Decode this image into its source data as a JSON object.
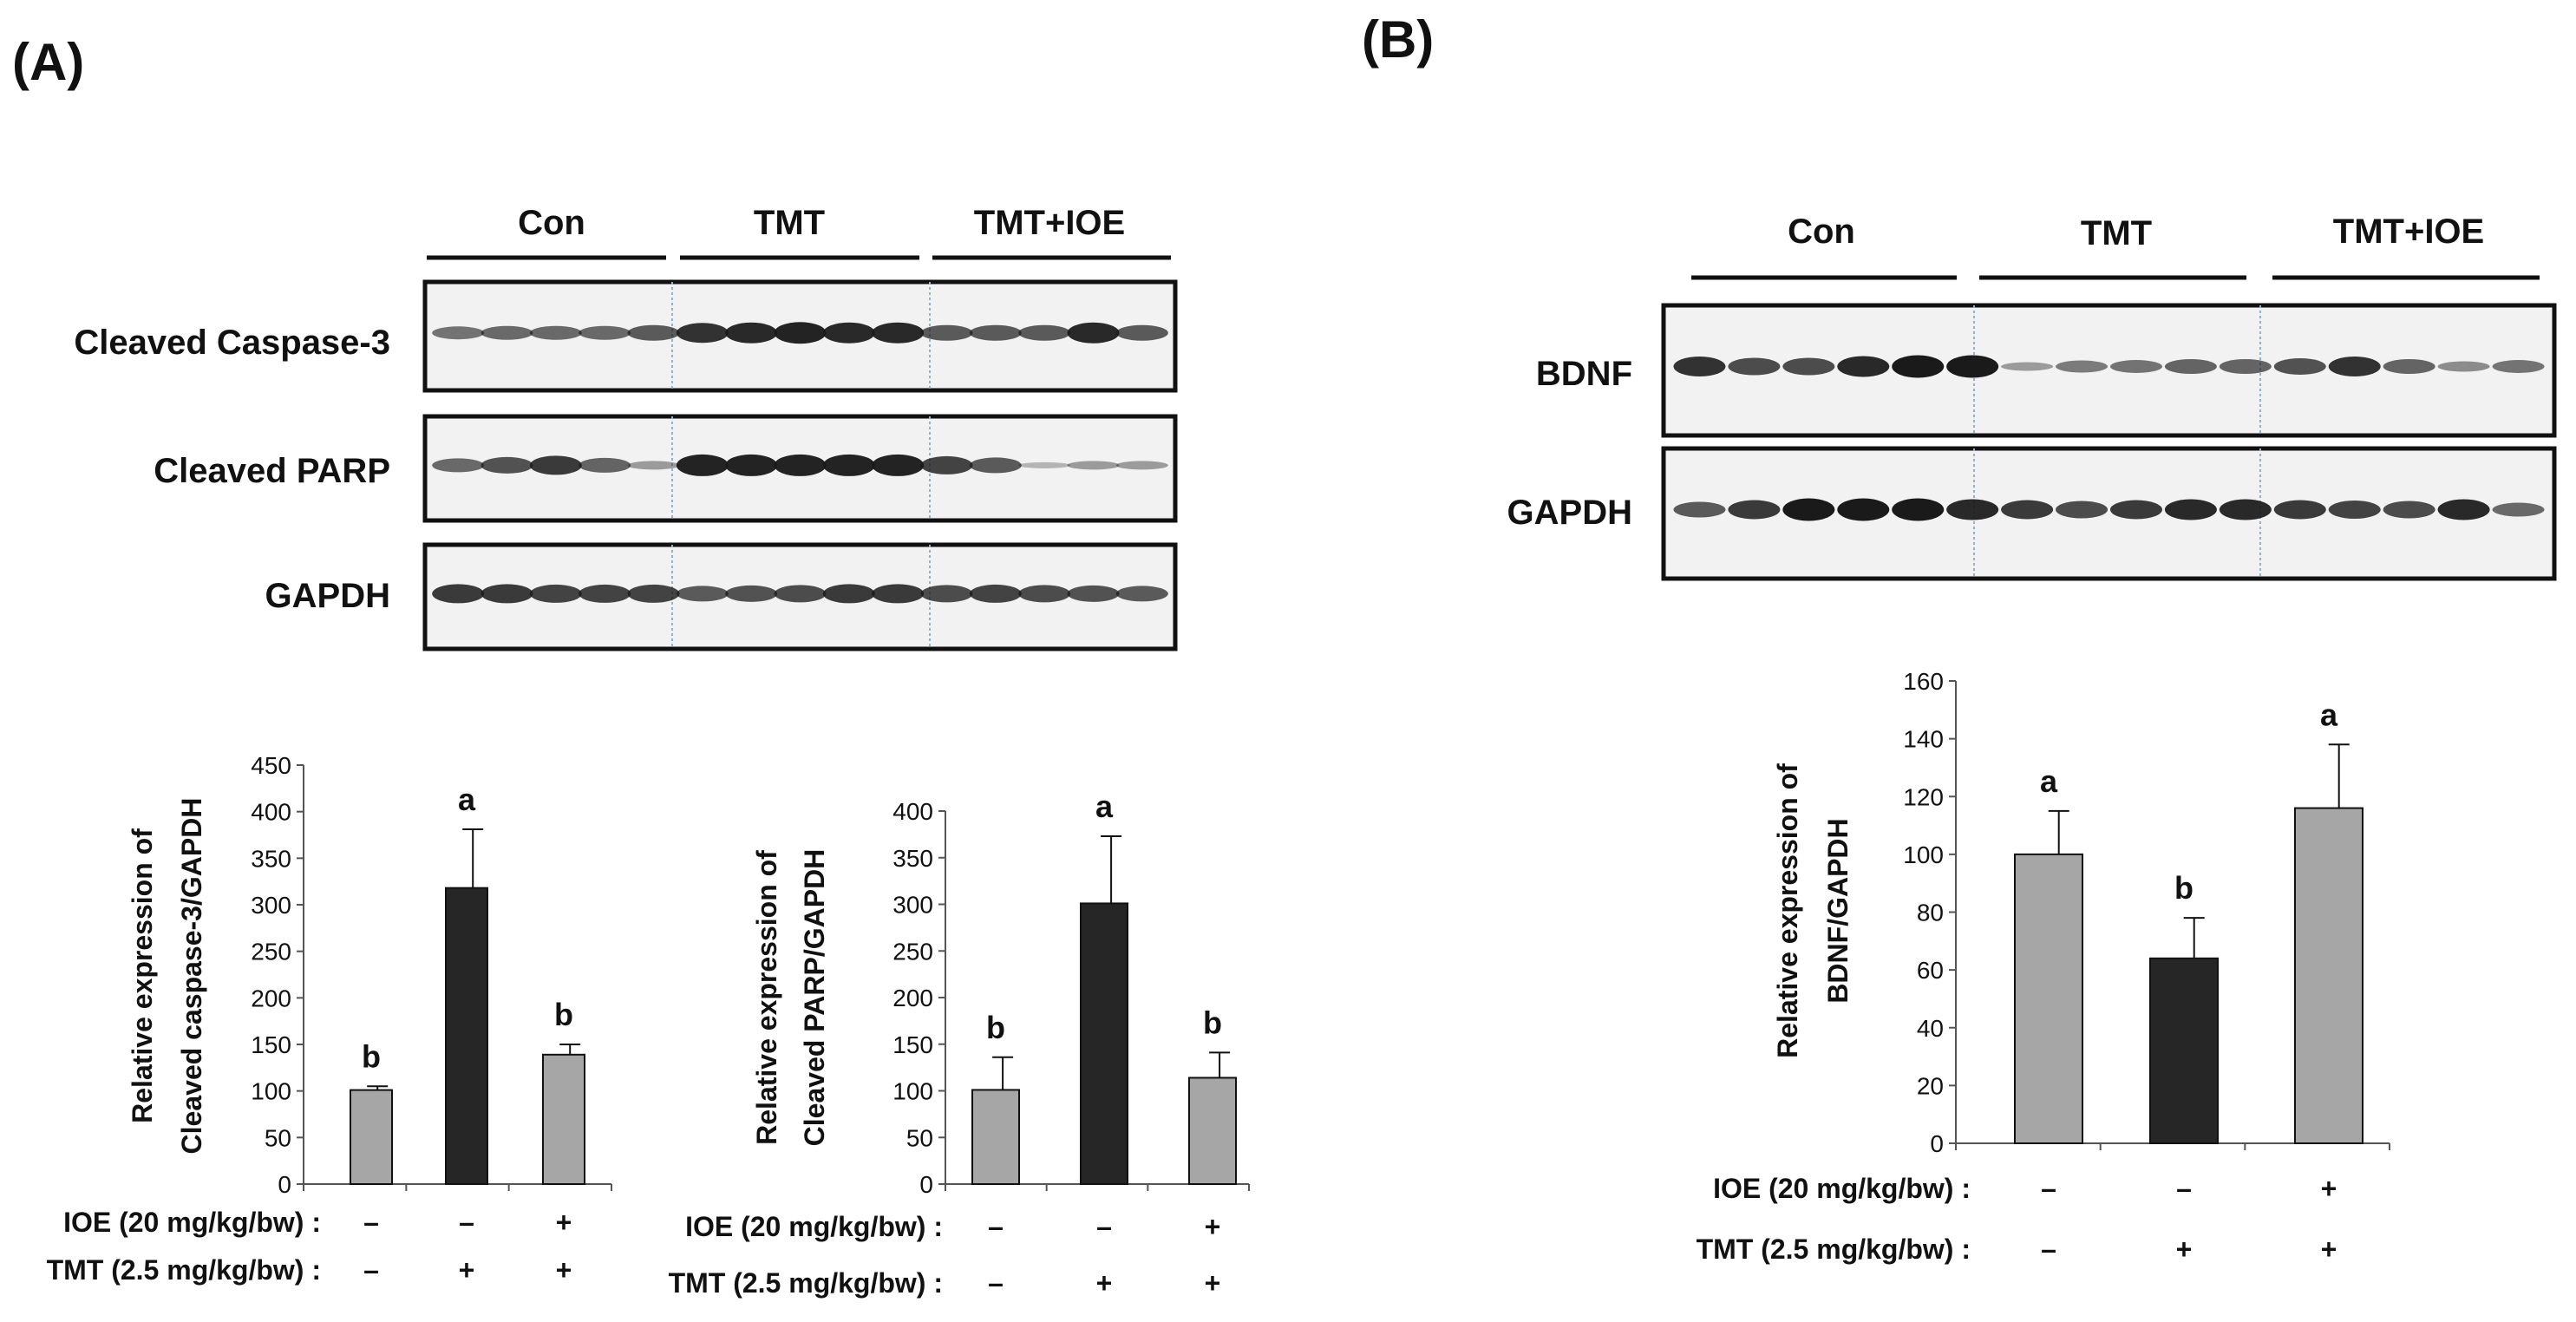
{
  "panels": {
    "A": {
      "letter": "(A)",
      "groups": [
        "Con",
        "TMT",
        "TMT+IOE"
      ],
      "blots": [
        {
          "label": "Cleaved Caspase-3",
          "lanes": [
            0.45,
            0.5,
            0.5,
            0.5,
            0.6,
            0.85,
            0.9,
            0.95,
            0.9,
            0.9,
            0.6,
            0.6,
            0.6,
            0.9,
            0.6
          ]
        },
        {
          "label": "Cleaved PARP",
          "lanes": [
            0.5,
            0.65,
            0.8,
            0.55,
            0.2,
            0.95,
            0.95,
            0.95,
            0.95,
            0.95,
            0.75,
            0.6,
            0.05,
            0.2,
            0.2
          ]
        },
        {
          "label": "GAPDH",
          "lanes": [
            0.8,
            0.8,
            0.75,
            0.75,
            0.75,
            0.6,
            0.65,
            0.7,
            0.8,
            0.8,
            0.7,
            0.75,
            0.7,
            0.65,
            0.6
          ]
        }
      ]
    },
    "B": {
      "letter": "(B)",
      "groups": [
        "Con",
        "TMT",
        "TMT+IOE"
      ],
      "blots": [
        {
          "label": "BDNF",
          "lanes": [
            0.85,
            0.7,
            0.7,
            0.9,
            1.0,
            1.0,
            0.2,
            0.4,
            0.45,
            0.55,
            0.55,
            0.65,
            0.85,
            0.55,
            0.3,
            0.45
          ]
        },
        {
          "label": "GAPDH",
          "lanes": [
            0.6,
            0.8,
            1.0,
            1.0,
            1.0,
            0.9,
            0.8,
            0.7,
            0.8,
            0.9,
            0.9,
            0.8,
            0.75,
            0.7,
            0.9,
            0.5
          ]
        }
      ]
    }
  },
  "chart_data": [
    {
      "type": "bar",
      "panel": "A",
      "ylabel_line1": "Relative expression of",
      "ylabel_line2": "Cleaved caspase-3/GAPDH",
      "ylim": [
        0,
        450
      ],
      "yticks": [
        "0",
        "50",
        "100",
        "150",
        "200",
        "250",
        "300",
        "350",
        "400",
        "450"
      ],
      "values": [
        101,
        318,
        139
      ],
      "errors": [
        4,
        63,
        11
      ],
      "letters": [
        "b",
        "a",
        "b"
      ],
      "bar_colors": [
        "#a6a6a6",
        "#262626",
        "#a6a6a6"
      ],
      "treatments": [
        {
          "label": "IOE (20 mg/kg/bw) :",
          "marks": [
            "–",
            "–",
            "+"
          ]
        },
        {
          "label": "TMT (2.5 mg/kg/bw) :",
          "marks": [
            "–",
            "+",
            "+"
          ]
        }
      ]
    },
    {
      "type": "bar",
      "panel": "A",
      "ylabel_line1": "Relative expression of",
      "ylabel_line2": "Cleaved PARP/GAPDH",
      "ylim": [
        0,
        400
      ],
      "yticks": [
        "0",
        "50",
        "100",
        "150",
        "200",
        "250",
        "300",
        "350",
        "400"
      ],
      "values": [
        101,
        301,
        114
      ],
      "errors": [
        35,
        72,
        27
      ],
      "letters": [
        "b",
        "a",
        "b"
      ],
      "bar_colors": [
        "#a6a6a6",
        "#262626",
        "#a6a6a6"
      ],
      "treatments": [
        {
          "label": "IOE (20 mg/kg/bw) :",
          "marks": [
            "–",
            "–",
            "+"
          ]
        },
        {
          "label": "TMT (2.5 mg/kg/bw) :",
          "marks": [
            "–",
            "+",
            "+"
          ]
        }
      ]
    },
    {
      "type": "bar",
      "panel": "B",
      "ylabel_line1": "Relative expression of",
      "ylabel_line2": "BDNF/GAPDH",
      "ylim": [
        0,
        160
      ],
      "yticks": [
        "0",
        "20",
        "40",
        "60",
        "80",
        "100",
        "120",
        "140",
        "160"
      ],
      "values": [
        100,
        64,
        116
      ],
      "errors": [
        15,
        14,
        22
      ],
      "letters": [
        "a",
        "b",
        "a"
      ],
      "bar_colors": [
        "#a6a6a6",
        "#262626",
        "#a6a6a6"
      ],
      "treatments": [
        {
          "label": "IOE (20 mg/kg/bw) :",
          "marks": [
            "–",
            "–",
            "+"
          ]
        },
        {
          "label": "TMT (2.5 mg/kg/bw) :",
          "marks": [
            "–",
            "+",
            "+"
          ]
        }
      ]
    }
  ]
}
